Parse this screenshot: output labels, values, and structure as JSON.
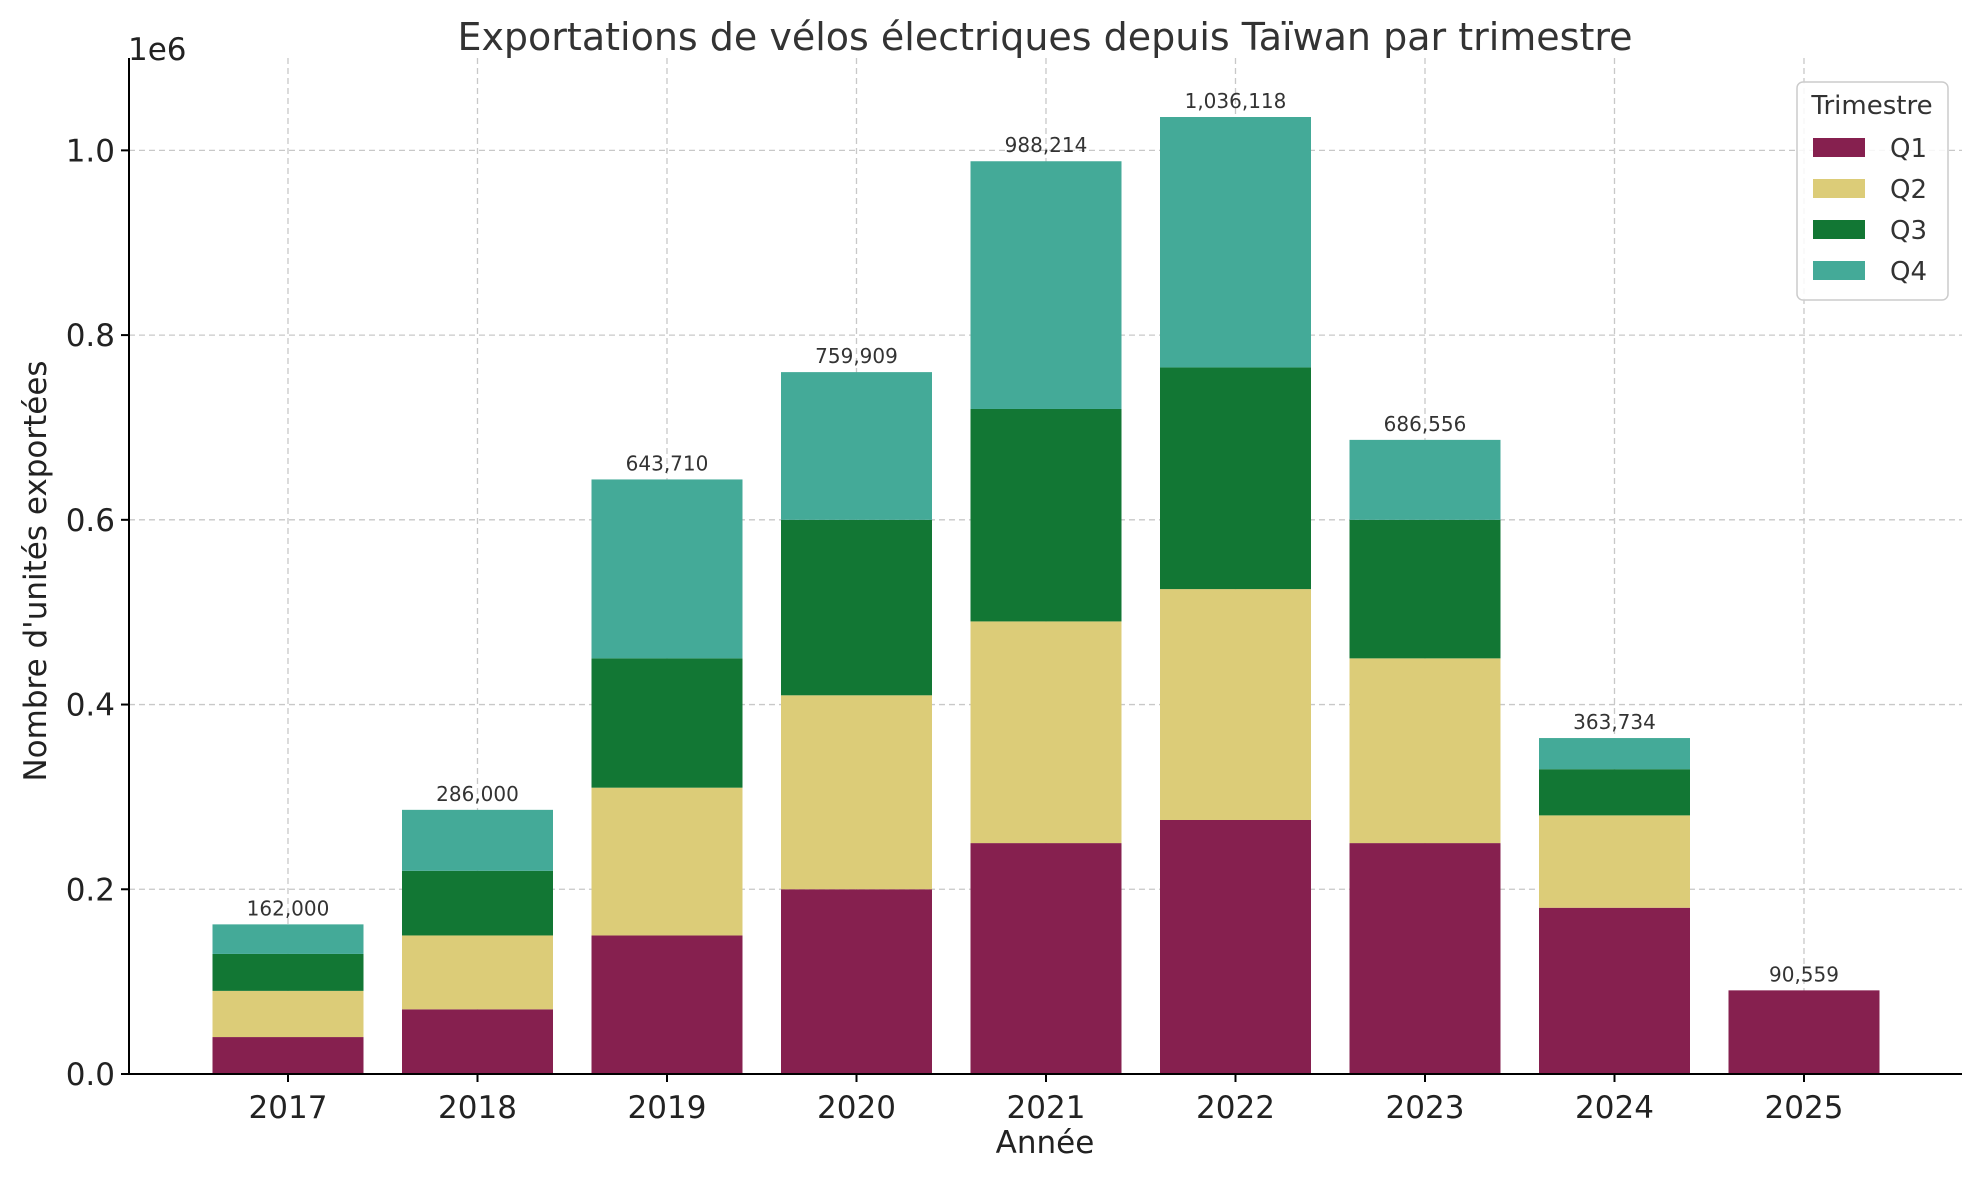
{
  "chart_data": {
    "type": "bar",
    "stacked": true,
    "title": "Exportations de vélos électriques depuis Taïwan par trimestre",
    "xlabel": "Année",
    "ylabel": "Nombre d'unités exportées",
    "y_offset_label": "1e6",
    "categories": [
      "2017",
      "2018",
      "2019",
      "2020",
      "2021",
      "2022",
      "2023",
      "2024",
      "2025"
    ],
    "series": [
      {
        "name": "Q1",
        "color": "#86204f",
        "values": [
          40000,
          70000,
          150000,
          200000,
          250000,
          275000,
          250000,
          180000,
          90559
        ]
      },
      {
        "name": "Q2",
        "color": "#dccc78",
        "values": [
          50000,
          80000,
          160000,
          210000,
          240000,
          250000,
          200000,
          100000,
          0
        ]
      },
      {
        "name": "Q3",
        "color": "#127734",
        "values": [
          40000,
          70000,
          140000,
          190000,
          230000,
          240000,
          150000,
          50000,
          0
        ]
      },
      {
        "name": "Q4",
        "color": "#44aa98",
        "values": [
          32000,
          66000,
          193710,
          159909,
          268214,
          271118,
          86556,
          33734,
          0
        ]
      }
    ],
    "totals": [
      "162,000",
      "286,000",
      "643,710",
      "759,909",
      "988,214",
      "1,036,118",
      "686,556",
      "363,734",
      "90,559"
    ],
    "yticks": [
      {
        "value": 0,
        "label": "0.0"
      },
      {
        "value": 200000,
        "label": "0.2"
      },
      {
        "value": 400000,
        "label": "0.4"
      },
      {
        "value": 600000,
        "label": "0.6"
      },
      {
        "value": 800000,
        "label": "0.8"
      },
      {
        "value": 1000000,
        "label": "1.0"
      }
    ],
    "ylim": [
      0,
      1100000
    ],
    "grid": true,
    "legend": {
      "title": "Trimestre",
      "position": "top-right"
    }
  }
}
